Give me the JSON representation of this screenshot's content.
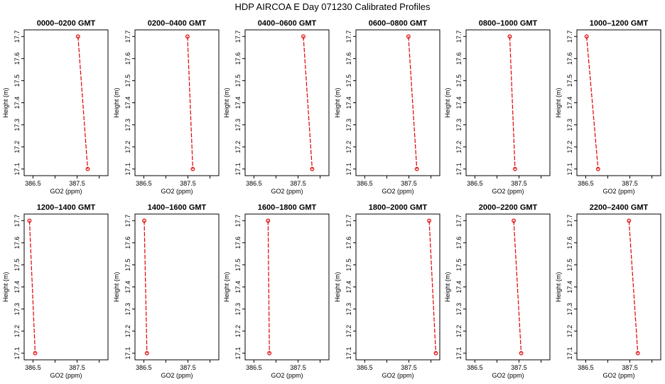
{
  "chart_data": {
    "type": "line",
    "title": "HDP  AIRCOA E  Day 071230  Calibrated Profiles",
    "xlabel": "GO2 (ppm)",
    "ylabel": "Height (m)",
    "xlim": [
      386.3,
      388.2
    ],
    "ylim": [
      17.07,
      17.73
    ],
    "x_ticks": [
      386.5,
      387.0,
      387.5,
      388.0
    ],
    "x_tick_labels": [
      "386.5",
      "",
      "387.5",
      ""
    ],
    "y_ticks": [
      17.1,
      17.2,
      17.3,
      17.4,
      17.5,
      17.6,
      17.7
    ],
    "y_tick_labels": [
      "17.1",
      "17.2",
      "17.3",
      "17.4",
      "17.5",
      "17.6",
      "17.7"
    ],
    "panels": [
      {
        "title": "0000–0200 GMT",
        "x": [
          387.52,
          387.74
        ],
        "y": [
          17.7,
          17.1
        ]
      },
      {
        "title": "0200–0400 GMT",
        "x": [
          387.49,
          387.61
        ],
        "y": [
          17.7,
          17.1
        ]
      },
      {
        "title": "0400–0600 GMT",
        "x": [
          387.62,
          387.82
        ],
        "y": [
          17.7,
          17.1
        ]
      },
      {
        "title": "0600–0800 GMT",
        "x": [
          387.49,
          387.68
        ],
        "y": [
          17.7,
          17.1
        ]
      },
      {
        "title": "0800–1000 GMT",
        "x": [
          387.29,
          387.41
        ],
        "y": [
          17.7,
          17.1
        ]
      },
      {
        "title": "1000–1200 GMT",
        "x": [
          386.52,
          386.78
        ],
        "y": [
          17.7,
          17.1
        ]
      },
      {
        "title": "1200–1400 GMT",
        "x": [
          386.42,
          386.55
        ],
        "y": [
          17.7,
          17.1
        ]
      },
      {
        "title": "1400–1600 GMT",
        "x": [
          386.51,
          386.57
        ],
        "y": [
          17.7,
          17.1
        ]
      },
      {
        "title": "1600–1800 GMT",
        "x": [
          386.82,
          386.85
        ],
        "y": [
          17.7,
          17.1
        ]
      },
      {
        "title": "1800–2000 GMT",
        "x": [
          387.96,
          388.11
        ],
        "y": [
          17.7,
          17.1
        ]
      },
      {
        "title": "2000–2200 GMT",
        "x": [
          387.38,
          387.55
        ],
        "y": [
          17.7,
          17.1
        ]
      },
      {
        "title": "2200–2400 GMT",
        "x": [
          387.48,
          387.68
        ],
        "y": [
          17.7,
          17.1
        ]
      }
    ]
  }
}
